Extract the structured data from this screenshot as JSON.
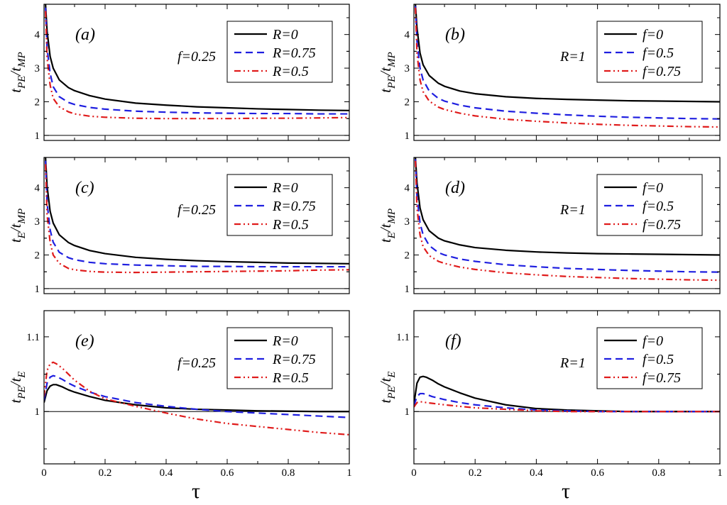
{
  "xlabel": "τ",
  "chart_data": [
    {
      "type": "line",
      "panel": "(a)",
      "param_text": "f=0.25",
      "ylabel": "t_PE/t_MP",
      "ylabel_parts": [
        "t",
        "PE",
        "/t",
        "MP"
      ],
      "xlim": [
        0,
        1
      ],
      "ylim": [
        0.85,
        4.9
      ],
      "xticks": [
        0,
        0.2,
        0.4,
        0.6,
        0.8,
        1
      ],
      "xtick_labels": [],
      "yticks": [
        1,
        2,
        3,
        4
      ],
      "ytick_labels": [
        "1",
        "2",
        "3",
        "4"
      ],
      "hline": 1,
      "legend_position": "top-right",
      "series": [
        {
          "name": "R=0",
          "color": "#000000",
          "dash": "solid",
          "x": [
            0.005,
            0.01,
            0.02,
            0.03,
            0.05,
            0.08,
            0.1,
            0.15,
            0.2,
            0.3,
            0.4,
            0.5,
            0.6,
            0.7,
            0.8,
            0.9,
            1.0
          ],
          "y": [
            4.9,
            4.1,
            3.35,
            3.0,
            2.65,
            2.42,
            2.33,
            2.18,
            2.08,
            1.96,
            1.9,
            1.85,
            1.82,
            1.79,
            1.77,
            1.75,
            1.74
          ]
        },
        {
          "name": "R=0.75",
          "color": "#1f1fe0",
          "dash": "dashed",
          "x": [
            0.005,
            0.01,
            0.02,
            0.03,
            0.05,
            0.08,
            0.1,
            0.15,
            0.2,
            0.3,
            0.4,
            0.5,
            0.6,
            0.7,
            0.8,
            0.9,
            1.0
          ],
          "y": [
            4.8,
            3.6,
            2.85,
            2.45,
            2.15,
            1.98,
            1.92,
            1.83,
            1.78,
            1.72,
            1.69,
            1.67,
            1.66,
            1.65,
            1.65,
            1.64,
            1.64
          ]
        },
        {
          "name": "R=0.5",
          "color": "#e01b1b",
          "dash": "dashdotdot",
          "x": [
            0.005,
            0.01,
            0.02,
            0.03,
            0.05,
            0.08,
            0.1,
            0.15,
            0.2,
            0.3,
            0.4,
            0.5,
            0.6,
            0.7,
            0.8,
            0.9,
            1.0
          ],
          "y": [
            4.7,
            3.3,
            2.5,
            2.1,
            1.85,
            1.7,
            1.64,
            1.57,
            1.54,
            1.51,
            1.5,
            1.5,
            1.5,
            1.51,
            1.51,
            1.52,
            1.53
          ]
        }
      ]
    },
    {
      "type": "line",
      "panel": "(b)",
      "param_text": "R=1",
      "ylabel": "t_PE/t_MP",
      "ylabel_parts": [
        "t",
        "PE",
        "/t",
        "MP"
      ],
      "xlim": [
        0,
        1
      ],
      "ylim": [
        0.85,
        4.9
      ],
      "xticks": [
        0,
        0.2,
        0.4,
        0.6,
        0.8,
        1
      ],
      "xtick_labels": [],
      "yticks": [
        1,
        2,
        3,
        4
      ],
      "ytick_labels": [
        "1",
        "2",
        "3",
        "4"
      ],
      "hline": 1,
      "legend_position": "top-right",
      "series": [
        {
          "name": "f=0",
          "color": "#000000",
          "dash": "solid",
          "x": [
            0.005,
            0.01,
            0.02,
            0.03,
            0.05,
            0.08,
            0.1,
            0.15,
            0.2,
            0.3,
            0.4,
            0.5,
            0.6,
            0.7,
            0.8,
            0.9,
            1.0
          ],
          "y": [
            4.9,
            4.2,
            3.45,
            3.1,
            2.78,
            2.55,
            2.46,
            2.32,
            2.24,
            2.15,
            2.1,
            2.07,
            2.05,
            2.03,
            2.02,
            2.01,
            2.0
          ]
        },
        {
          "name": "f=0.5",
          "color": "#1f1fe0",
          "dash": "dashed",
          "x": [
            0.005,
            0.01,
            0.02,
            0.03,
            0.05,
            0.08,
            0.1,
            0.15,
            0.2,
            0.3,
            0.4,
            0.5,
            0.6,
            0.7,
            0.8,
            0.9,
            1.0
          ],
          "y": [
            4.85,
            3.8,
            3.0,
            2.65,
            2.32,
            2.1,
            2.02,
            1.9,
            1.82,
            1.72,
            1.66,
            1.61,
            1.57,
            1.54,
            1.52,
            1.5,
            1.49
          ]
        },
        {
          "name": "f=0.75",
          "color": "#e01b1b",
          "dash": "dashdotdot",
          "x": [
            0.005,
            0.01,
            0.02,
            0.03,
            0.05,
            0.08,
            0.1,
            0.15,
            0.2,
            0.3,
            0.4,
            0.5,
            0.6,
            0.7,
            0.8,
            0.9,
            1.0
          ],
          "y": [
            4.8,
            3.45,
            2.65,
            2.3,
            2.02,
            1.84,
            1.77,
            1.66,
            1.58,
            1.48,
            1.42,
            1.37,
            1.33,
            1.3,
            1.28,
            1.26,
            1.25
          ]
        }
      ]
    },
    {
      "type": "line",
      "panel": "(c)",
      "param_text": "f=0.25",
      "ylabel": "t_E/t_MP",
      "ylabel_parts": [
        "t",
        "E",
        "/t",
        "MP"
      ],
      "xlim": [
        0,
        1
      ],
      "ylim": [
        0.85,
        4.9
      ],
      "xticks": [
        0,
        0.2,
        0.4,
        0.6,
        0.8,
        1
      ],
      "xtick_labels": [],
      "yticks": [
        1,
        2,
        3,
        4
      ],
      "ytick_labels": [
        "1",
        "2",
        "3",
        "4"
      ],
      "hline": 1,
      "legend_position": "top-right",
      "series": [
        {
          "name": "R=0",
          "color": "#000000",
          "dash": "solid",
          "x": [
            0.005,
            0.01,
            0.02,
            0.03,
            0.05,
            0.08,
            0.1,
            0.15,
            0.2,
            0.3,
            0.4,
            0.5,
            0.6,
            0.7,
            0.8,
            0.9,
            1.0
          ],
          "y": [
            4.9,
            4.05,
            3.3,
            2.95,
            2.6,
            2.37,
            2.28,
            2.13,
            2.04,
            1.93,
            1.87,
            1.83,
            1.8,
            1.78,
            1.76,
            1.75,
            1.74
          ]
        },
        {
          "name": "R=0.75",
          "color": "#1f1fe0",
          "dash": "dashed",
          "x": [
            0.005,
            0.01,
            0.02,
            0.03,
            0.05,
            0.08,
            0.1,
            0.15,
            0.2,
            0.3,
            0.4,
            0.5,
            0.6,
            0.7,
            0.8,
            0.9,
            1.0
          ],
          "y": [
            4.8,
            3.55,
            2.75,
            2.38,
            2.08,
            1.92,
            1.86,
            1.78,
            1.74,
            1.7,
            1.68,
            1.66,
            1.66,
            1.65,
            1.65,
            1.65,
            1.65
          ]
        },
        {
          "name": "R=0.5",
          "color": "#e01b1b",
          "dash": "dashdotdot",
          "x": [
            0.005,
            0.01,
            0.02,
            0.03,
            0.05,
            0.08,
            0.1,
            0.15,
            0.2,
            0.3,
            0.4,
            0.5,
            0.6,
            0.7,
            0.8,
            0.9,
            1.0
          ],
          "y": [
            4.7,
            3.2,
            2.38,
            2.0,
            1.75,
            1.6,
            1.56,
            1.51,
            1.49,
            1.48,
            1.49,
            1.5,
            1.51,
            1.52,
            1.53,
            1.55,
            1.56
          ]
        }
      ]
    },
    {
      "type": "line",
      "panel": "(d)",
      "param_text": "R=1",
      "ylabel": "t_E/t_MP",
      "ylabel_parts": [
        "t",
        "E",
        "/t",
        "MP"
      ],
      "xlim": [
        0,
        1
      ],
      "ylim": [
        0.85,
        4.9
      ],
      "xticks": [
        0,
        0.2,
        0.4,
        0.6,
        0.8,
        1
      ],
      "xtick_labels": [],
      "yticks": [
        1,
        2,
        3,
        4
      ],
      "ytick_labels": [
        "1",
        "2",
        "3",
        "4"
      ],
      "hline": 1,
      "legend_position": "top-right",
      "series": [
        {
          "name": "f=0",
          "color": "#000000",
          "dash": "solid",
          "x": [
            0.005,
            0.01,
            0.02,
            0.03,
            0.05,
            0.08,
            0.1,
            0.15,
            0.2,
            0.3,
            0.4,
            0.5,
            0.6,
            0.7,
            0.8,
            0.9,
            1.0
          ],
          "y": [
            4.9,
            4.15,
            3.4,
            3.05,
            2.72,
            2.5,
            2.42,
            2.3,
            2.22,
            2.14,
            2.09,
            2.06,
            2.04,
            2.03,
            2.02,
            2.01,
            2.0
          ]
        },
        {
          "name": "f=0.5",
          "color": "#1f1fe0",
          "dash": "dashed",
          "x": [
            0.005,
            0.01,
            0.02,
            0.03,
            0.05,
            0.08,
            0.1,
            0.15,
            0.2,
            0.3,
            0.4,
            0.5,
            0.6,
            0.7,
            0.8,
            0.9,
            1.0
          ],
          "y": [
            4.85,
            3.75,
            2.95,
            2.6,
            2.28,
            2.07,
            2.0,
            1.88,
            1.81,
            1.71,
            1.65,
            1.6,
            1.57,
            1.54,
            1.52,
            1.5,
            1.49
          ]
        },
        {
          "name": "f=0.75",
          "color": "#e01b1b",
          "dash": "dashdotdot",
          "x": [
            0.005,
            0.01,
            0.02,
            0.03,
            0.05,
            0.08,
            0.1,
            0.15,
            0.2,
            0.3,
            0.4,
            0.5,
            0.6,
            0.7,
            0.8,
            0.9,
            1.0
          ],
          "y": [
            4.8,
            3.4,
            2.6,
            2.25,
            1.98,
            1.81,
            1.75,
            1.64,
            1.57,
            1.47,
            1.41,
            1.36,
            1.33,
            1.3,
            1.28,
            1.26,
            1.25
          ]
        }
      ]
    },
    {
      "type": "line",
      "panel": "(e)",
      "param_text": "f=0.25",
      "ylabel": "t_PE/t_E",
      "ylabel_parts": [
        "t",
        "PE",
        "/t",
        "E"
      ],
      "xlim": [
        0,
        1
      ],
      "ylim": [
        0.93,
        1.135
      ],
      "xticks": [
        0,
        0.2,
        0.4,
        0.6,
        0.8,
        1
      ],
      "xtick_labels": [
        "0",
        "0.2",
        "0.4",
        "0.6",
        "0.8",
        "1"
      ],
      "yticks": [
        1,
        1.1
      ],
      "ytick_labels": [
        "1",
        "1.1"
      ],
      "hline": 1,
      "legend_position": "top-right",
      "series": [
        {
          "name": "R=0",
          "color": "#000000",
          "dash": "solid",
          "x": [
            0.0,
            0.01,
            0.02,
            0.03,
            0.04,
            0.06,
            0.08,
            0.1,
            0.15,
            0.2,
            0.3,
            0.4,
            0.5,
            0.6,
            0.7,
            0.8,
            0.9,
            1.0
          ],
          "y": [
            1.012,
            1.028,
            1.034,
            1.036,
            1.036,
            1.033,
            1.029,
            1.026,
            1.02,
            1.015,
            1.009,
            1.005,
            1.003,
            1.002,
            1.001,
            1.0005,
            1.0,
            1.0
          ]
        },
        {
          "name": "R=0.75",
          "color": "#1f1fe0",
          "dash": "dashed",
          "x": [
            0.0,
            0.01,
            0.02,
            0.03,
            0.04,
            0.06,
            0.08,
            0.1,
            0.15,
            0.2,
            0.3,
            0.4,
            0.5,
            0.6,
            0.7,
            0.8,
            0.9,
            1.0
          ],
          "y": [
            1.015,
            1.038,
            1.046,
            1.048,
            1.047,
            1.043,
            1.038,
            1.034,
            1.026,
            1.02,
            1.012,
            1.007,
            1.003,
            1.0,
            0.998,
            0.996,
            0.994,
            0.992
          ]
        },
        {
          "name": "R=0.5",
          "color": "#e01b1b",
          "dash": "dashdotdot",
          "x": [
            0.0,
            0.01,
            0.02,
            0.03,
            0.04,
            0.06,
            0.08,
            0.1,
            0.15,
            0.2,
            0.3,
            0.4,
            0.5,
            0.6,
            0.7,
            0.8,
            0.9,
            1.0
          ],
          "y": [
            1.02,
            1.055,
            1.064,
            1.066,
            1.064,
            1.058,
            1.05,
            1.042,
            1.027,
            1.017,
            1.007,
            0.998,
            0.99,
            0.984,
            0.98,
            0.976,
            0.972,
            0.969
          ]
        }
      ]
    },
    {
      "type": "line",
      "panel": "(f)",
      "param_text": "R=1",
      "ylabel": "t_PE/t_E",
      "ylabel_parts": [
        "t",
        "PE",
        "/t",
        "E"
      ],
      "xlim": [
        0,
        1
      ],
      "ylim": [
        0.93,
        1.135
      ],
      "xticks": [
        0,
        0.2,
        0.4,
        0.6,
        0.8,
        1
      ],
      "xtick_labels": [
        "0",
        "0.2",
        "0.4",
        "0.6",
        "0.8",
        "1"
      ],
      "yticks": [
        1,
        1.1
      ],
      "ytick_labels": [
        "1",
        "1.1"
      ],
      "hline": 1,
      "legend_position": "top-right",
      "series": [
        {
          "name": "f=0",
          "color": "#000000",
          "dash": "solid",
          "x": [
            0.0,
            0.01,
            0.02,
            0.03,
            0.04,
            0.06,
            0.08,
            0.1,
            0.15,
            0.2,
            0.3,
            0.4,
            0.5,
            0.6,
            0.7,
            0.8,
            0.9,
            1.0
          ],
          "y": [
            1.01,
            1.038,
            1.046,
            1.047,
            1.046,
            1.042,
            1.037,
            1.033,
            1.025,
            1.018,
            1.009,
            1.004,
            1.002,
            1.001,
            1.0,
            1.0,
            1.0,
            1.0
          ]
        },
        {
          "name": "f=0.5",
          "color": "#1f1fe0",
          "dash": "dashed",
          "x": [
            0.0,
            0.01,
            0.02,
            0.03,
            0.04,
            0.06,
            0.08,
            0.1,
            0.15,
            0.2,
            0.3,
            0.4,
            0.5,
            0.6,
            0.7,
            0.8,
            0.9,
            1.0
          ],
          "y": [
            1.008,
            1.02,
            1.024,
            1.024,
            1.023,
            1.02,
            1.018,
            1.016,
            1.012,
            1.009,
            1.005,
            1.002,
            1.001,
            1.0,
            1.0,
            1.0,
            1.0,
            1.0
          ]
        },
        {
          "name": "f=0.75",
          "color": "#e01b1b",
          "dash": "dashdotdot",
          "x": [
            0.0,
            0.01,
            0.02,
            0.03,
            0.04,
            0.06,
            0.08,
            0.1,
            0.15,
            0.2,
            0.3,
            0.4,
            0.5,
            0.6,
            0.7,
            0.8,
            0.9,
            1.0
          ],
          "y": [
            1.006,
            1.012,
            1.013,
            1.013,
            1.012,
            1.011,
            1.01,
            1.009,
            1.007,
            1.005,
            1.003,
            1.001,
            1.0,
            1.0,
            1.0,
            1.0,
            1.0,
            1.0
          ]
        }
      ]
    }
  ]
}
